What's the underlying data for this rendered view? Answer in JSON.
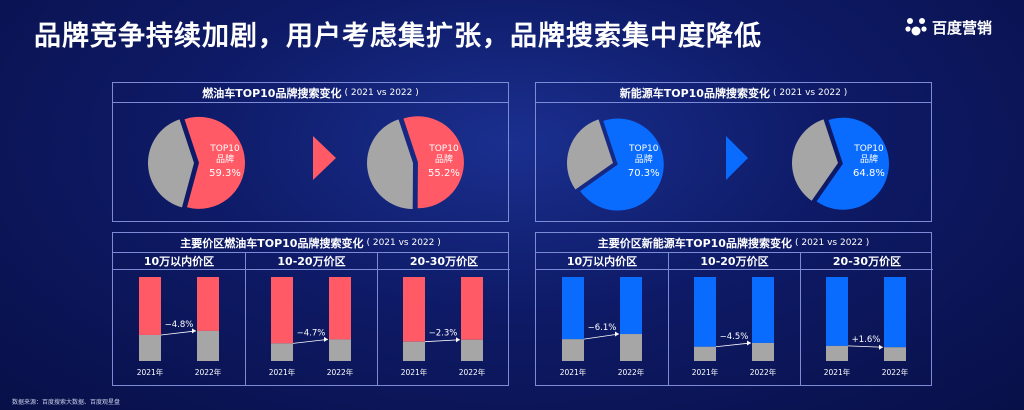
{
  "header": {
    "title": "品牌竞争持续加剧，用户考虑集扩张，品牌搜索集中度降低",
    "logo_text": "百度营销"
  },
  "colors": {
    "red": "#ff5a66",
    "blue": "#0a6cff",
    "gray": "#a6a6a6",
    "line": "#7d8bd6"
  },
  "footer": {
    "source": "数据来源：百度搜索大数据、百度观星盘"
  },
  "chart_data": [
    {
      "type": "pie",
      "panel_title": "燃油车TOP10品牌搜索变化",
      "panel_sub": "( 2021 vs 2022 )",
      "color": "#ff5a66",
      "slice_label": [
        "TOP10",
        "品牌"
      ],
      "pies": [
        {
          "period": "2021",
          "value": 59.3,
          "label": "59.3%"
        },
        {
          "period": "2022",
          "value": 55.2,
          "label": "55.2%"
        }
      ]
    },
    {
      "type": "pie",
      "panel_title": "新能源车TOP10品牌搜索变化",
      "panel_sub": "( 2021 vs 2022 )",
      "color": "#0a6cff",
      "slice_label": [
        "TOP10",
        "品牌"
      ],
      "pies": [
        {
          "period": "2021",
          "value": 70.3,
          "label": "70.3%"
        },
        {
          "period": "2022",
          "value": 64.8,
          "label": "64.8%"
        }
      ]
    },
    {
      "type": "bar",
      "panel_title": "主要价区燃油车TOP10品牌搜索变化",
      "panel_sub": "( 2021 vs 2022 )",
      "color": "#ff5a66",
      "categories": [
        "2021年",
        "2022年"
      ],
      "groups": [
        {
          "name": "10万以内价区",
          "top10": [
            69.0,
            64.2
          ],
          "change": "−4.8%"
        },
        {
          "name": "10-20万价区",
          "top10": [
            79.0,
            74.3
          ],
          "change": "−4.7%"
        },
        {
          "name": "20-30万价区",
          "top10": [
            77.0,
            74.7
          ],
          "change": "−2.3%"
        }
      ]
    },
    {
      "type": "bar",
      "panel_title": "主要价区新能源车TOP10品牌搜索变化",
      "panel_sub": "( 2021 vs 2022 )",
      "color": "#0a6cff",
      "categories": [
        "2021年",
        "2022年"
      ],
      "groups": [
        {
          "name": "10万以内价区",
          "top10": [
            74.0,
            67.9
          ],
          "change": "−6.1%"
        },
        {
          "name": "10-20万价区",
          "top10": [
            83.0,
            78.5
          ],
          "change": "−4.5%"
        },
        {
          "name": "20-30万价区",
          "top10": [
            82.0,
            83.6
          ],
          "change": "+1.6%"
        }
      ]
    }
  ]
}
